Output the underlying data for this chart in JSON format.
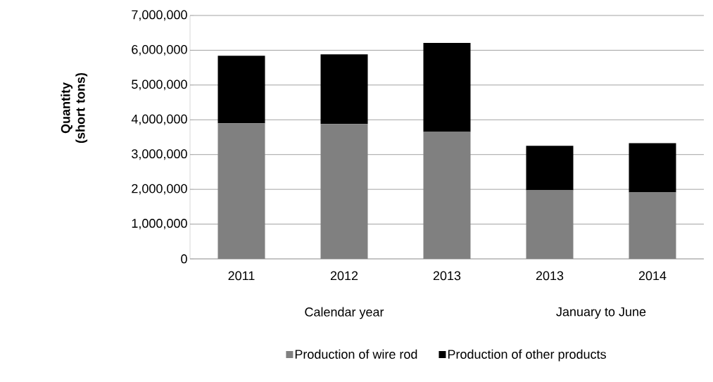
{
  "chart_data": {
    "type": "bar",
    "stacked": true,
    "ylabel": "Quantity (short tons)",
    "categories": [
      "2011",
      "2012",
      "2013",
      "2013",
      "2014"
    ],
    "series": [
      {
        "name": "Production of wire rod",
        "color": "#808080",
        "values": [
          3900000,
          3880000,
          3650000,
          1970000,
          1910000
        ]
      },
      {
        "name": "Production of other products",
        "color": "#000000",
        "values": [
          1940000,
          2000000,
          2560000,
          1280000,
          1420000
        ]
      }
    ],
    "ylim": [
      0,
      7000000
    ],
    "yticks": [
      0,
      {
        "value": 1000000,
        "label": "1,000,000"
      },
      {
        "value": 2000000,
        "label": "2,000,000"
      },
      {
        "value": 3000000,
        "label": "3,000,000"
      },
      {
        "value": 4000000,
        "label": "4,000,000"
      },
      {
        "value": 5000000,
        "label": "5,000,000"
      },
      {
        "value": 6000000,
        "label": "6,000,000"
      },
      {
        "value": 7000000,
        "label": "7,000,000"
      }
    ],
    "annotations": [
      "Calendar year",
      "January to June"
    ],
    "grid": "y",
    "legend": "bottom"
  }
}
